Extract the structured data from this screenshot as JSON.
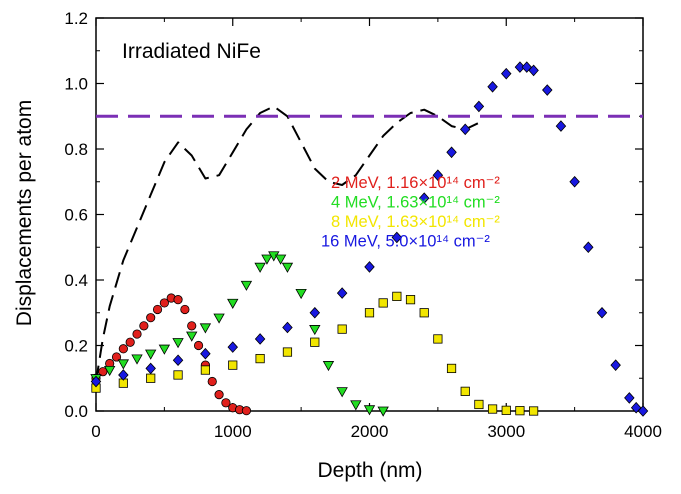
{
  "chart_data": {
    "type": "scatter",
    "title": "",
    "xlabel": "Depth (nm)",
    "ylabel": "Displacements per atom",
    "xlim": [
      0,
      4000
    ],
    "ylim": [
      0,
      1.2
    ],
    "x_ticks": [
      "0",
      "1000",
      "2000",
      "3000",
      "4000"
    ],
    "y_ticks": [
      "0.0",
      "0.2",
      "0.4",
      "0.6",
      "0.8",
      "1.0",
      "1.2"
    ],
    "annotation": "Irradiated NiFe",
    "grid": false,
    "legend_position": "center-right",
    "series": [
      {
        "name": "2 MeV, 1.16×10¹⁴ cm⁻²",
        "marker": "circle",
        "color": "#e0201c",
        "x": [
          0,
          50,
          100,
          150,
          200,
          250,
          300,
          350,
          400,
          450,
          500,
          550,
          600,
          650,
          700,
          750,
          800,
          850,
          900,
          950,
          1000,
          1050,
          1100
        ],
        "y": [
          0.1,
          0.12,
          0.145,
          0.165,
          0.19,
          0.21,
          0.235,
          0.26,
          0.285,
          0.31,
          0.33,
          0.345,
          0.34,
          0.31,
          0.26,
          0.2,
          0.14,
          0.09,
          0.05,
          0.025,
          0.01,
          0.004,
          0.001
        ]
      },
      {
        "name": "4 MeV, 1.63×10¹⁴ cm⁻²",
        "marker": "triangle-down",
        "color": "#22dd22",
        "x": [
          0,
          100,
          200,
          300,
          400,
          500,
          600,
          700,
          800,
          900,
          1000,
          1100,
          1200,
          1250,
          1300,
          1350,
          1400,
          1500,
          1600,
          1700,
          1800,
          1900,
          2000,
          2100
        ],
        "y": [
          0.1,
          0.125,
          0.145,
          0.16,
          0.175,
          0.19,
          0.21,
          0.23,
          0.255,
          0.285,
          0.33,
          0.385,
          0.44,
          0.465,
          0.475,
          0.465,
          0.44,
          0.36,
          0.25,
          0.14,
          0.06,
          0.02,
          0.005,
          0.001
        ]
      },
      {
        "name": "8 MeV, 1.63×10¹⁴ cm⁻²",
        "marker": "square",
        "color": "#f2e600",
        "x": [
          0,
          200,
          400,
          600,
          800,
          1000,
          1200,
          1400,
          1600,
          1800,
          2000,
          2100,
          2200,
          2300,
          2400,
          2500,
          2600,
          2700,
          2800,
          2900,
          3000,
          3100,
          3200
        ],
        "y": [
          0.07,
          0.085,
          0.1,
          0.11,
          0.125,
          0.14,
          0.16,
          0.18,
          0.21,
          0.25,
          0.3,
          0.33,
          0.35,
          0.34,
          0.3,
          0.22,
          0.13,
          0.06,
          0.02,
          0.006,
          0.002,
          0.001,
          0.0
        ]
      },
      {
        "name": "16 MeV, 5.0×10¹⁴ cm⁻²",
        "marker": "diamond",
        "color": "#1818e0",
        "x": [
          0,
          200,
          400,
          600,
          800,
          1000,
          1200,
          1400,
          1600,
          1800,
          2000,
          2200,
          2400,
          2500,
          2600,
          2700,
          2800,
          2900,
          3000,
          3100,
          3150,
          3200,
          3300,
          3400,
          3500,
          3600,
          3700,
          3800,
          3900,
          3950,
          4000
        ],
        "y": [
          0.09,
          0.11,
          0.13,
          0.155,
          0.175,
          0.195,
          0.22,
          0.255,
          0.3,
          0.36,
          0.44,
          0.53,
          0.65,
          0.72,
          0.79,
          0.86,
          0.93,
          0.99,
          1.03,
          1.05,
          1.05,
          1.04,
          0.98,
          0.87,
          0.7,
          0.5,
          0.3,
          0.14,
          0.04,
          0.01,
          0.0
        ]
      }
    ],
    "lines": [
      {
        "style": "dashed",
        "color": "#000000",
        "x": [
          0,
          50,
          100,
          150,
          200,
          300,
          400,
          500,
          600,
          700,
          800,
          900,
          1000,
          1100,
          1200,
          1300,
          1400,
          1500,
          1600,
          1700,
          1800,
          1900,
          2000,
          2100,
          2200,
          2300,
          2400,
          2500,
          2600,
          2700,
          2800
        ],
        "y": [
          0.09,
          0.22,
          0.32,
          0.39,
          0.46,
          0.56,
          0.66,
          0.76,
          0.82,
          0.78,
          0.71,
          0.72,
          0.79,
          0.86,
          0.91,
          0.93,
          0.9,
          0.82,
          0.74,
          0.7,
          0.69,
          0.72,
          0.78,
          0.84,
          0.88,
          0.91,
          0.92,
          0.9,
          0.87,
          0.86,
          0.88
        ]
      },
      {
        "style": "dashed",
        "color": "#7b2fb5",
        "x": [
          0,
          4000
        ],
        "y": [
          0.9,
          0.9
        ]
      }
    ]
  }
}
